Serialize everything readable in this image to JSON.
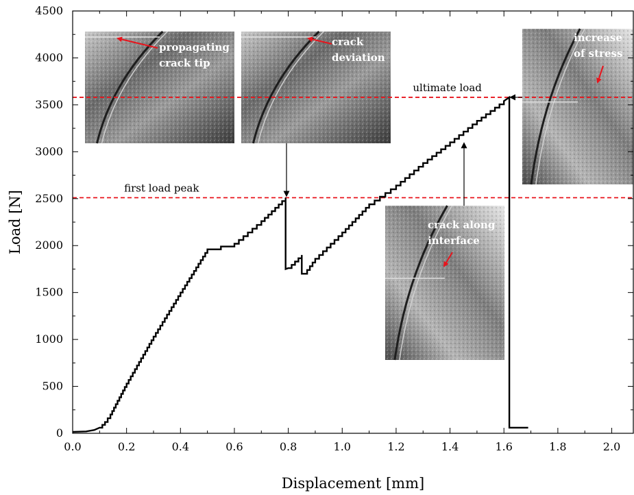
{
  "chart_data": {
    "type": "line",
    "title": "",
    "xlabel": "Displacement [mm]",
    "ylabel": "Load [N]",
    "xlim": [
      0.0,
      2.08
    ],
    "ylim": [
      0,
      4500
    ],
    "xticks": [
      0.0,
      0.2,
      0.4,
      0.6,
      0.8,
      1.0,
      1.2,
      1.4,
      1.6,
      1.8,
      2.0
    ],
    "xtick_labels": [
      "0.0",
      "0.2",
      "0.4",
      "0.6",
      "0.8",
      "1.0",
      "1.2",
      "1.4",
      "1.6",
      "1.8",
      "2.0"
    ],
    "yticks": [
      0,
      500,
      1000,
      1500,
      2000,
      2500,
      3000,
      3500,
      4000,
      4500
    ],
    "ytick_labels": [
      "0",
      "500",
      "1000",
      "1500",
      "2000",
      "2500",
      "3000",
      "3500",
      "4000",
      "4500"
    ],
    "grid": false,
    "legend": "none",
    "series": [
      {
        "color": "#000000",
        "x": [
          0.0,
          0.05,
          0.08,
          0.1,
          0.12,
          0.14,
          0.2,
          0.3,
          0.4,
          0.5,
          0.6,
          0.7,
          0.79,
          0.79,
          0.8,
          0.85,
          0.85,
          0.86,
          0.9,
          1.0,
          1.1,
          1.2,
          1.3,
          1.4,
          1.5,
          1.6,
          1.62,
          1.62,
          1.69
        ],
        "y": [
          15,
          20,
          35,
          60,
          120,
          200,
          530,
          1030,
          1500,
          1960,
          2020,
          2260,
          2510,
          1750,
          1760,
          1900,
          1700,
          1700,
          1860,
          2140,
          2440,
          2640,
          2880,
          3100,
          3330,
          3540,
          3580,
          60,
          60
        ]
      }
    ],
    "reference_lines": [
      {
        "label": "first load peak",
        "y": 2510,
        "color": "#e8141c"
      },
      {
        "label": "ultimate load",
        "y": 3580,
        "color": "#e8141c"
      }
    ],
    "annotations": [
      {
        "label_lines": [
          "propagating",
          "crack tip"
        ]
      },
      {
        "label_lines": [
          "crack",
          "deviation"
        ]
      },
      {
        "label_lines": [
          "crack along",
          "interface"
        ]
      },
      {
        "label_lines": [
          "increase",
          "of stress"
        ]
      }
    ]
  }
}
